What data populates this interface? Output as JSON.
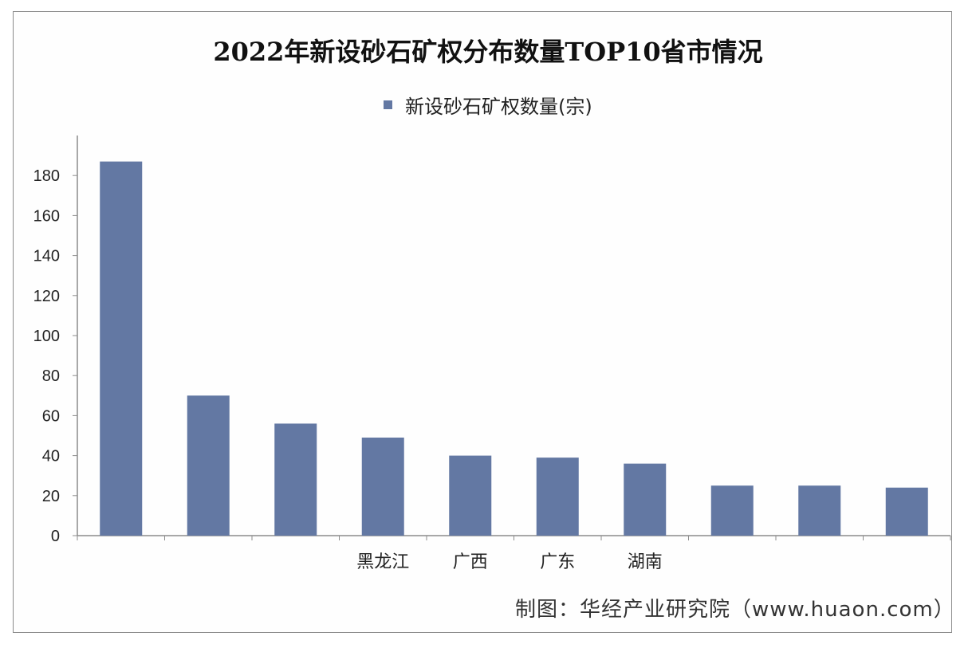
{
  "chart_data": {
    "type": "bar",
    "title": "2022年新设砂石矿权分布数量TOP10省市情况",
    "legend": {
      "position": "top-center"
    },
    "categories": [
      "",
      "",
      "",
      "黑龙江",
      "广西",
      "广东",
      "湖南",
      "",
      "",
      ""
    ],
    "series": [
      {
        "name": "新设砂石矿权数量(宗)",
        "color": "#6378a3",
        "values": [
          187,
          70,
          56,
          49,
          40,
          39,
          36,
          25,
          25,
          24
        ]
      }
    ],
    "yticks": [
      0,
      20,
      40,
      60,
      80,
      100,
      120,
      140,
      160,
      180
    ],
    "ylim": [
      0,
      200
    ],
    "grid": false
  },
  "credit": "制图：华经产业研究院（www.huaon.com）"
}
